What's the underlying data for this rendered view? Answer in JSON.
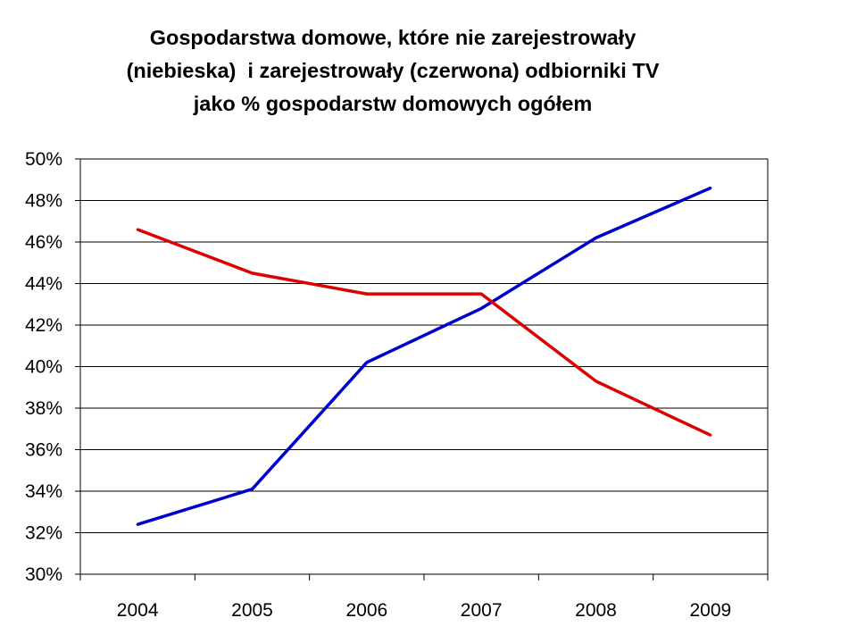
{
  "chart_data": {
    "type": "line",
    "title_lines": [
      "Gospodarstwa domowe, które nie zarejestrowały",
      "(niebieska)  i zarejestrowały (czerwona) odbiorniki TV",
      "jako % gospodarstw domowych ogółem"
    ],
    "categories": [
      "2004",
      "2005",
      "2006",
      "2007",
      "2008",
      "2009"
    ],
    "series": [
      {
        "color": "#0000cc",
        "values": [
          32.4,
          34.1,
          40.2,
          42.8,
          46.2,
          48.6
        ]
      },
      {
        "color": "#dd0000",
        "values": [
          46.6,
          44.5,
          43.5,
          43.5,
          39.3,
          36.7
        ]
      }
    ],
    "ylim": [
      30,
      50
    ],
    "ytick_step": 2,
    "ytick_labels": [
      "30%",
      "32%",
      "34%",
      "36%",
      "38%",
      "40%",
      "42%",
      "44%",
      "46%",
      "48%",
      "50%"
    ],
    "grid": true,
    "legend": "none"
  }
}
